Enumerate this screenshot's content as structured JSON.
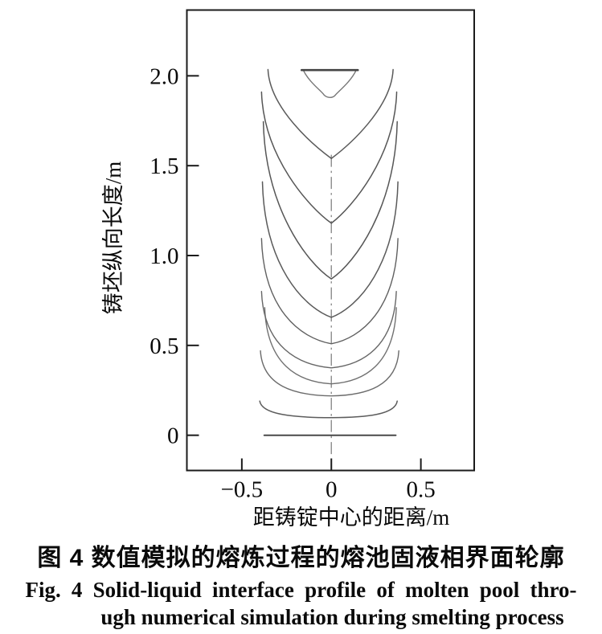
{
  "figure": {
    "caption_zh": "图 4  数值模拟的熔炼过程的熔池固液相界面轮廓",
    "caption_en_line1": "Fig. 4  Solid-liquid interface profile of molten pool thro-",
    "caption_en_line2": "ugh numerical simulation during smelting process"
  },
  "chart_data": {
    "type": "line",
    "title": "",
    "xlabel": "距铸锭中心的距离/m",
    "ylabel": "铸坯纵向长度/m",
    "xlim": [
      -0.807,
      0.798
    ],
    "ylim": [
      -0.196,
      2.366
    ],
    "grid": false,
    "legend_position": "none",
    "xticks": [
      {
        "value": -0.5,
        "label": "−0.5"
      },
      {
        "value": 0,
        "label": "0"
      },
      {
        "value": 0.5,
        "label": "0.5"
      }
    ],
    "yticks": [
      {
        "value": 0,
        "label": "0"
      },
      {
        "value": 0.5,
        "label": "0.5"
      },
      {
        "value": 1.0,
        "label": "1.0"
      },
      {
        "value": 1.5,
        "label": "1.5"
      },
      {
        "value": 2.0,
        "label": "2.0"
      }
    ],
    "series": [
      {
        "name": "interface-profile-1",
        "center_depth_m": 0.0,
        "edge_height_m": 0.0,
        "x_left_m": -0.375,
        "x_right_m": 0.36,
        "shape": 0.0,
        "color": "#3f3f3f",
        "width": 1.9
      },
      {
        "name": "interface-profile-2",
        "center_depth_m": 0.098,
        "edge_height_m": 0.19,
        "x_left_m": -0.4,
        "x_right_m": 0.368,
        "shape": 0.03,
        "color": "#5c5c5c",
        "width": 1.5
      },
      {
        "name": "interface-profile-3",
        "center_depth_m": 0.219,
        "edge_height_m": 0.47,
        "x_left_m": -0.396,
        "x_right_m": 0.377,
        "shape": 0.08,
        "color": "#6b6b6b",
        "width": 1.4
      },
      {
        "name": "interface-profile-4",
        "center_depth_m": 0.286,
        "edge_height_m": 0.71,
        "x_left_m": -0.372,
        "x_right_m": 0.363,
        "shape": 0.15,
        "color": "#707070",
        "width": 1.4
      },
      {
        "name": "interface-profile-5",
        "center_depth_m": 0.375,
        "edge_height_m": 0.8,
        "x_left_m": -0.39,
        "x_right_m": 0.363,
        "shape": 0.22,
        "color": "#666666",
        "width": 1.4
      },
      {
        "name": "interface-profile-6",
        "center_depth_m": 0.509,
        "edge_height_m": 1.095,
        "x_left_m": -0.39,
        "x_right_m": 0.372,
        "shape": 0.32,
        "color": "#606060",
        "width": 1.4
      },
      {
        "name": "interface-profile-7",
        "center_depth_m": 0.656,
        "edge_height_m": 1.41,
        "x_left_m": -0.385,
        "x_right_m": 0.372,
        "shape": 0.45,
        "color": "#5a5a5a",
        "width": 1.5
      },
      {
        "name": "interface-profile-8",
        "center_depth_m": 0.87,
        "edge_height_m": 1.745,
        "x_left_m": -0.38,
        "x_right_m": 0.368,
        "shape": 0.6,
        "color": "#565656",
        "width": 1.5
      },
      {
        "name": "interface-profile-9",
        "center_depth_m": 1.18,
        "edge_height_m": 1.91,
        "x_left_m": -0.39,
        "x_right_m": 0.365,
        "shape": 0.72,
        "color": "#565656",
        "width": 1.5
      },
      {
        "name": "interface-profile-10",
        "center_depth_m": 1.54,
        "edge_height_m": 2.035,
        "x_left_m": -0.354,
        "x_right_m": 0.345,
        "shape": 0.85,
        "color": "#5a5a5a",
        "width": 1.5
      }
    ],
    "final_pool_outline": {
      "top_y_m": 2.032,
      "top_x_from_m": -0.157,
      "top_x_to_m": 0.139,
      "bottom_y_m": 1.884,
      "top_edge_color": "#444444",
      "top_edge_width": 2.6,
      "side_color": "#777777",
      "side_width": 1.4
    },
    "centerline": {
      "x_m": 0,
      "y_from_m": -0.105,
      "y_to_m": 1.565,
      "color": "#8c8c8c",
      "dash": "15 5 2.5 5"
    },
    "frame_color": "#1b1b1b",
    "text_color": "#0a0a0a"
  }
}
